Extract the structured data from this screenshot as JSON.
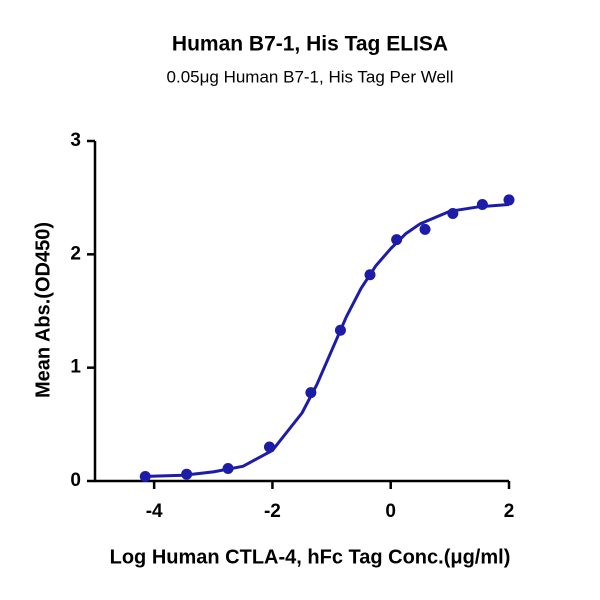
{
  "chart_data": {
    "type": "scatter",
    "title": "Human B7-1, His Tag ELISA",
    "subtitle": "0.05μg Human B7-1, His Tag Per Well",
    "x_label": "Log Human CTLA-4, hFc Tag Conc.(μg/ml)",
    "y_label": "Mean Abs.(OD450)",
    "color": "#1c1ca8",
    "x": [
      -4.15,
      -3.45,
      -2.75,
      -2.05,
      -1.35,
      -0.85,
      -0.35,
      0.1,
      0.58,
      1.05,
      1.55,
      2.0
    ],
    "values": [
      0.04,
      0.06,
      0.11,
      0.3,
      0.78,
      1.33,
      1.82,
      2.13,
      2.22,
      2.36,
      2.44,
      2.48
    ],
    "curve": {
      "x": [
        -4.2,
        -3.5,
        -3,
        -2.5,
        -2,
        -1.5,
        -1.25,
        -1,
        -0.75,
        -0.5,
        -0.25,
        0,
        0.25,
        0.5,
        1,
        1.5,
        2
      ],
      "values": [
        0.04,
        0.05,
        0.08,
        0.13,
        0.27,
        0.6,
        0.85,
        1.15,
        1.45,
        1.7,
        1.9,
        2.05,
        2.18,
        2.27,
        2.38,
        2.42,
        2.44
      ]
    },
    "xlim": [
      -5,
      2
    ],
    "ylim": [
      0,
      3
    ],
    "xticks": [
      -4,
      -2,
      0,
      2
    ],
    "yticks": [
      0,
      1,
      2,
      3
    ]
  }
}
